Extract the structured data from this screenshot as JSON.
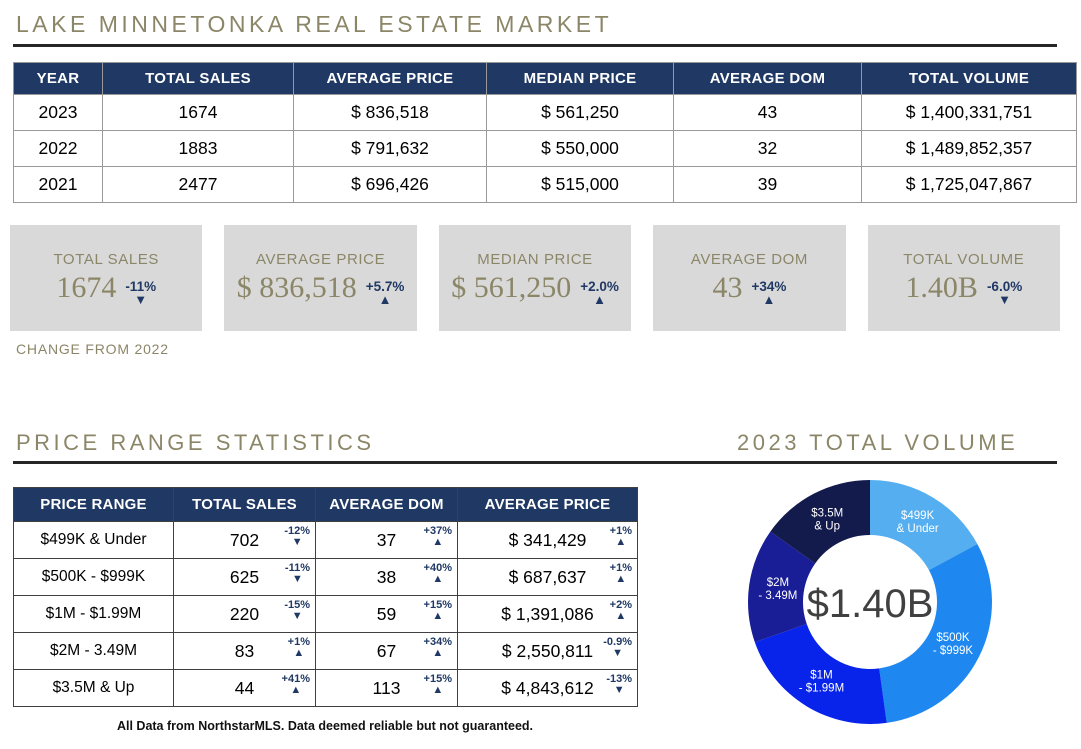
{
  "section_titles": {
    "market": "LAKE MINNETONKA REAL ESTATE MARKET",
    "price_range": "PRICE RANGE STATISTICS",
    "total_volume": "2023 TOTAL VOLUME"
  },
  "colors": {
    "accent_navy": "#1f3864",
    "heading_olive": "#8b8668",
    "card_bg": "#d9d9d9",
    "donut_center_text": "#404040"
  },
  "main_table": {
    "headers": [
      "YEAR",
      "TOTAL SALES",
      "AVERAGE PRICE",
      "MEDIAN PRICE",
      "AVERAGE DOM",
      "TOTAL VOLUME"
    ],
    "rows": [
      {
        "cells": [
          "2023",
          "1674",
          "$ 836,518",
          "$ 561,250",
          "43",
          "$ 1,400,331,751"
        ]
      },
      {
        "cells": [
          "2022",
          "1883",
          "$ 791,632",
          "$ 550,000",
          "32",
          "$ 1,489,852,357"
        ]
      },
      {
        "cells": [
          "2021",
          "2477",
          "$ 696,426",
          "$ 515,000",
          "39",
          "$ 1,725,047,867"
        ]
      }
    ]
  },
  "cards": [
    {
      "label": "TOTAL SALES",
      "value": "1674",
      "pct": "-11%",
      "arrow": "▼"
    },
    {
      "label": "AVERAGE PRICE",
      "value": "$ 836,518",
      "pct": "+5.7%",
      "arrow": "▲"
    },
    {
      "label": "MEDIAN PRICE",
      "value": "$ 561,250",
      "pct": "+2.0%",
      "arrow": "▲"
    },
    {
      "label": "AVERAGE DOM",
      "value": "43",
      "pct": "+34%",
      "arrow": "▲"
    },
    {
      "label": "TOTAL VOLUME",
      "value": "1.40B",
      "pct": "-6.0%",
      "arrow": "▼"
    }
  ],
  "change_note": "CHANGE FROM 2022",
  "price_table": {
    "headers": [
      "PRICE RANGE",
      "TOTAL SALES",
      "AVERAGE DOM",
      "AVERAGE PRICE"
    ],
    "rows": [
      {
        "range": "$499K & Under",
        "sales": {
          "v": "702",
          "pct": "-12%",
          "arrow": "▼"
        },
        "dom": {
          "v": "37",
          "pct": "+37%",
          "arrow": "▲"
        },
        "price": {
          "v": "$ 341,429",
          "pct": "+1%",
          "arrow": "▲"
        }
      },
      {
        "range": "$500K - $999K",
        "sales": {
          "v": "625",
          "pct": "-11%",
          "arrow": "▼"
        },
        "dom": {
          "v": "38",
          "pct": "+40%",
          "arrow": "▲"
        },
        "price": {
          "v": "$ 687,637",
          "pct": "+1%",
          "arrow": "▲"
        }
      },
      {
        "range": "$1M - $1.99M",
        "sales": {
          "v": "220",
          "pct": "-15%",
          "arrow": "▼"
        },
        "dom": {
          "v": "59",
          "pct": "+15%",
          "arrow": "▲"
        },
        "price": {
          "v": "$ 1,391,086",
          "pct": "+2%",
          "arrow": "▲"
        }
      },
      {
        "range": "$2M - 3.49M",
        "sales": {
          "v": "83",
          "pct": "+1%",
          "arrow": "▲"
        },
        "dom": {
          "v": "67",
          "pct": "+34%",
          "arrow": "▲"
        },
        "price": {
          "v": "$ 2,550,811",
          "pct": "-0.9%",
          "arrow": "▼"
        }
      },
      {
        "range": "$3.5M & Up",
        "sales": {
          "v": "44",
          "pct": "+41%",
          "arrow": "▲"
        },
        "dom": {
          "v": "113",
          "pct": "+15%",
          "arrow": "▲"
        },
        "price": {
          "v": "$ 4,843,612",
          "pct": "-13%",
          "arrow": "▼"
        }
      }
    ]
  },
  "footer": "All Data from NorthstarMLS.  Data deemed reliable but not guaranteed.",
  "chart_data": {
    "type": "pie",
    "subtype": "donut",
    "title": "2023 TOTAL VOLUME",
    "center_label": "$1.40B",
    "total_volume_usd_millions": 1400.3,
    "start_angle_deg": 0,
    "direction": "clockwise",
    "legend_position": "labels-inside-slices",
    "segments": [
      {
        "category": "$499K & Under",
        "label_lines": [
          "$499K",
          "& Under"
        ],
        "value_usd_millions": 239.7,
        "share_pct": 17.1,
        "color": "#55aeef"
      },
      {
        "category": "$500K - $999K",
        "label_lines": [
          "$500K",
          "- $999K"
        ],
        "value_usd_millions": 429.8,
        "share_pct": 30.7,
        "color": "#1e88f0"
      },
      {
        "category": "$1M - $1.99M",
        "label_lines": [
          "$1M",
          "- $1.99M"
        ],
        "value_usd_millions": 306.0,
        "share_pct": 21.9,
        "color": "#0823ea"
      },
      {
        "category": "$2M - 3.49M",
        "label_lines": [
          "$2M",
          "- 3.49M"
        ],
        "value_usd_millions": 211.7,
        "share_pct": 15.1,
        "color": "#1a1e96"
      },
      {
        "category": "$3.5M & Up",
        "label_lines": [
          "$3.5M",
          "& Up"
        ],
        "value_usd_millions": 213.1,
        "share_pct": 15.2,
        "color": "#131a4c"
      }
    ]
  }
}
